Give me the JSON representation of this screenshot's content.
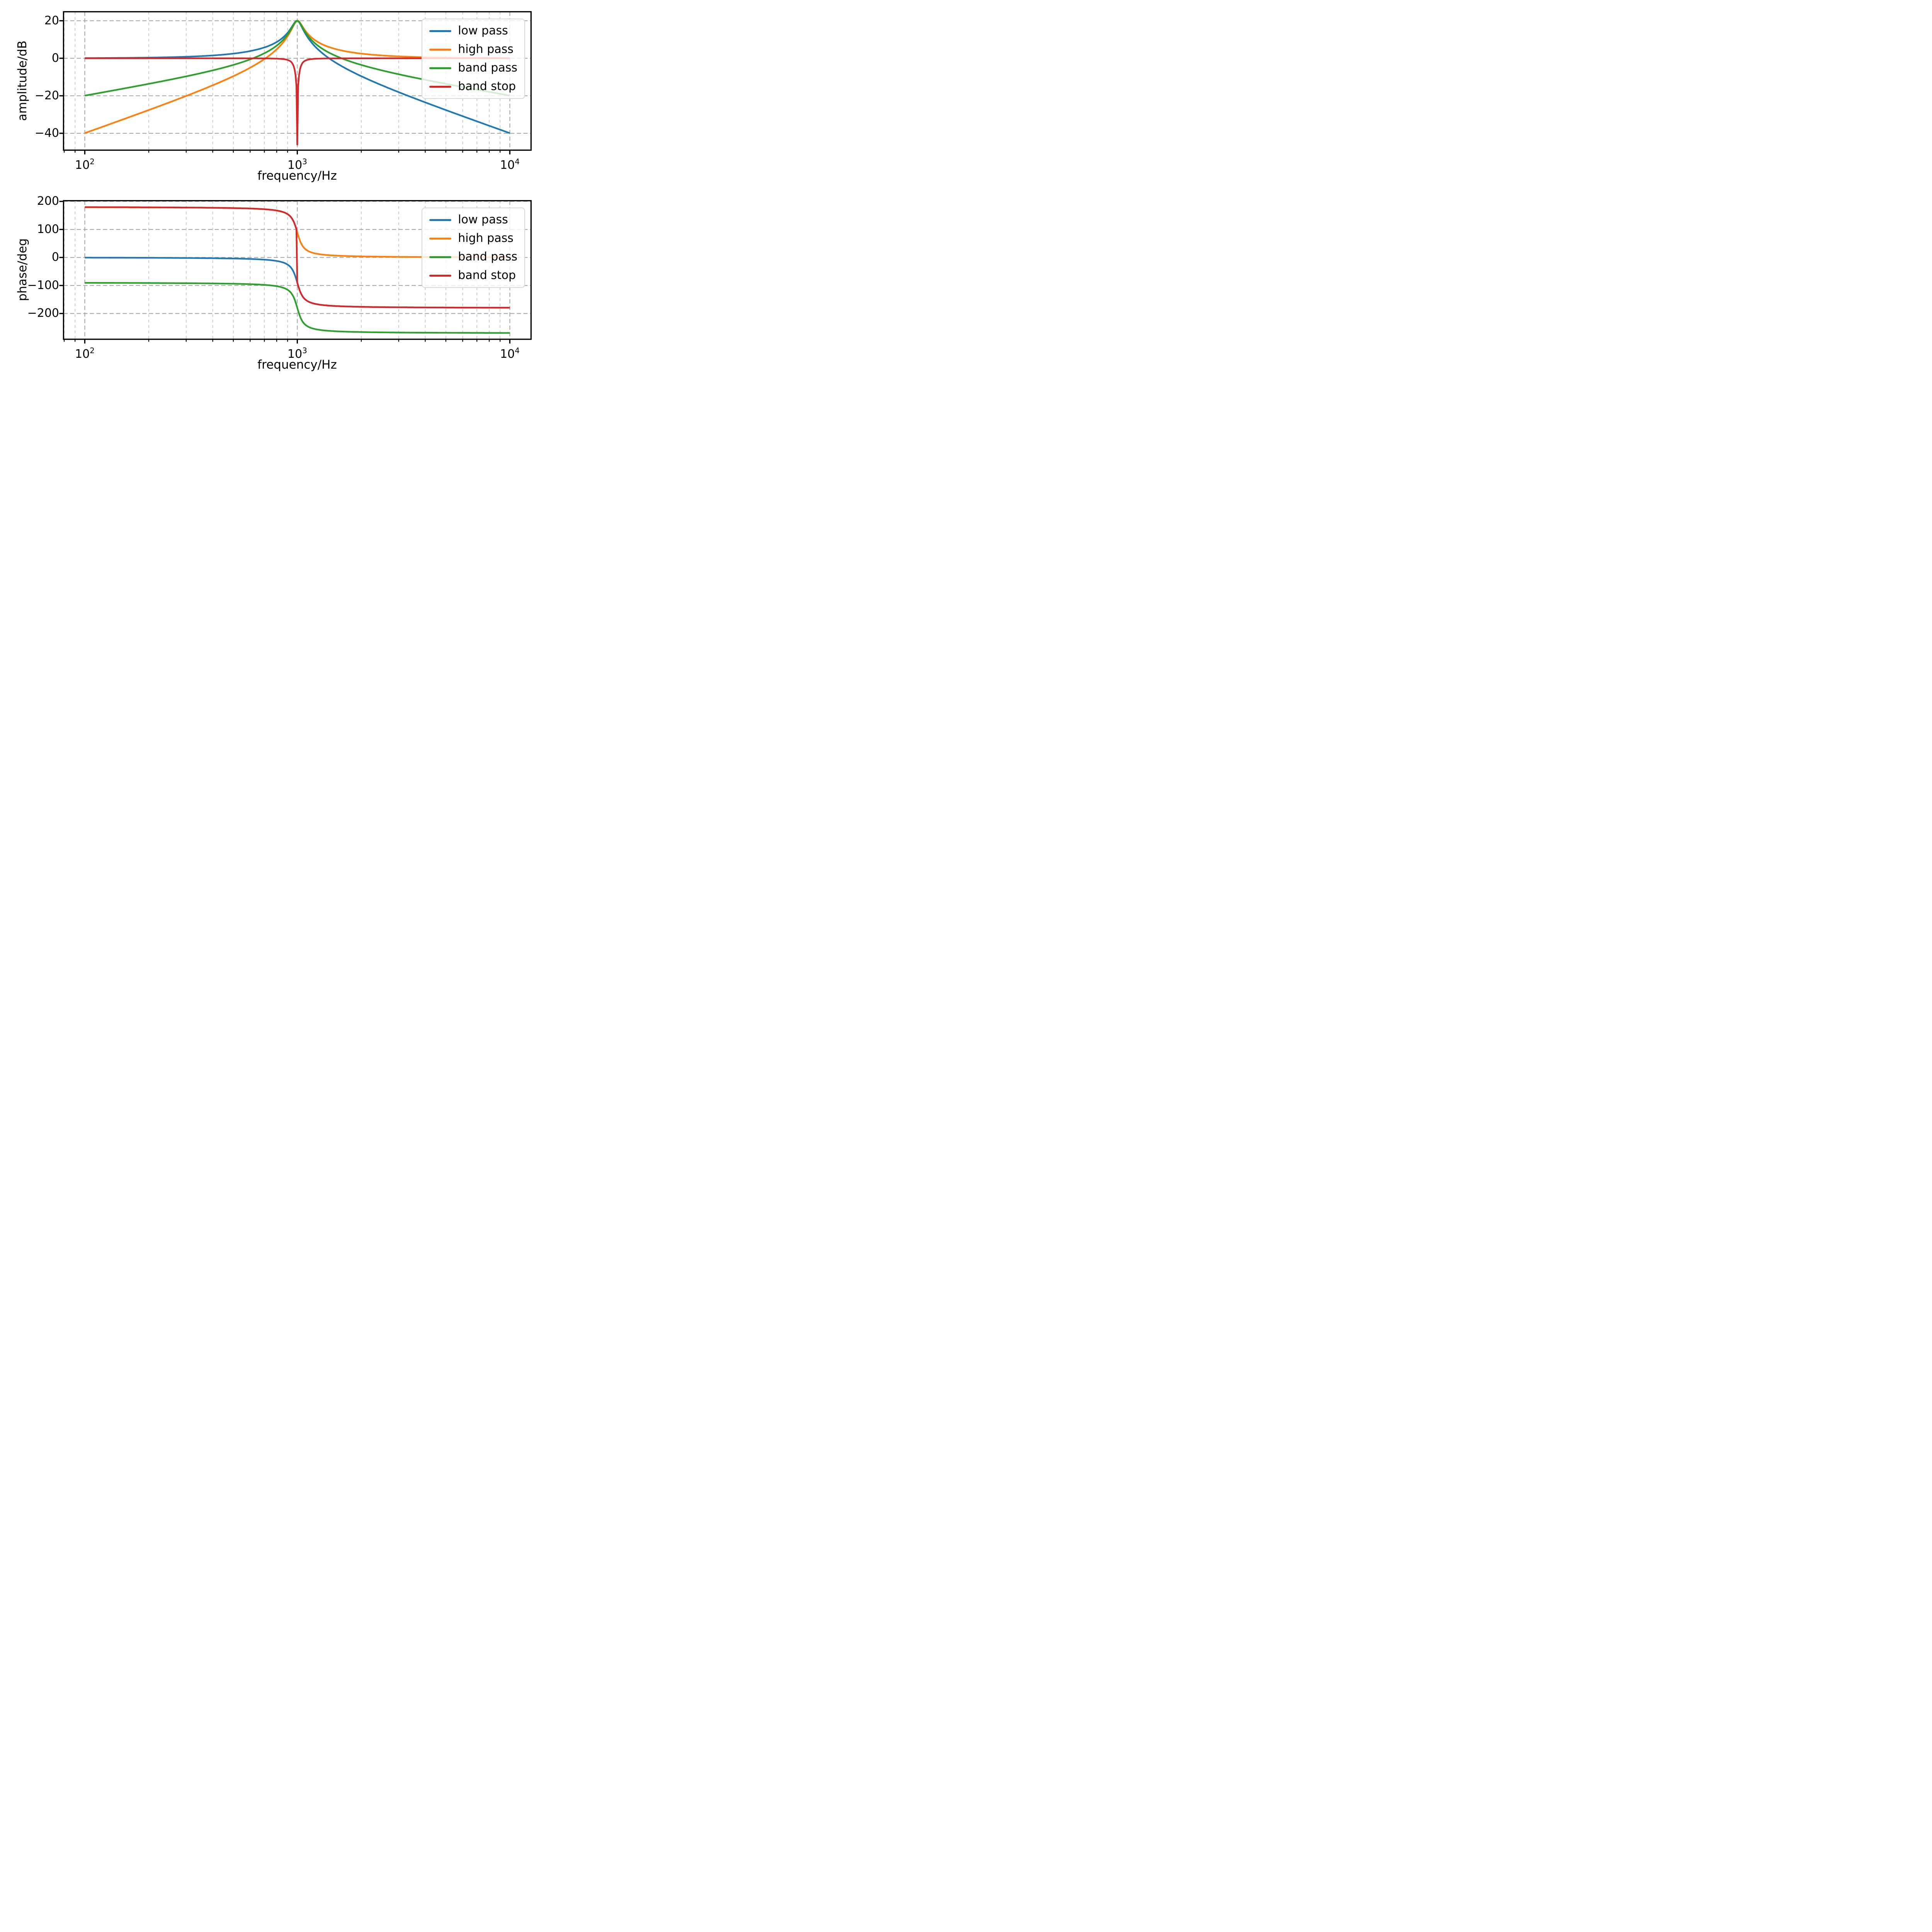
{
  "figure": {
    "background": "#ffffff",
    "text_color": "#000000",
    "grid_major_color": "#a6a6a6",
    "grid_minor_color": "#c6c6c6"
  },
  "chart_data": [
    {
      "id": "amplitude",
      "type": "line",
      "x_scale": "log",
      "xlabel": "frequency/Hz",
      "ylabel": "amplitude/dB",
      "xlim": [
        79.4,
        12589
      ],
      "ylim": [
        -49,
        24.8
      ],
      "x_tick_values": [
        100,
        1000,
        10000
      ],
      "x_tick_labels": [
        {
          "base": "10",
          "exp": "2"
        },
        {
          "base": "10",
          "exp": "3"
        },
        {
          "base": "10",
          "exp": "4"
        }
      ],
      "y_tick_values": [
        20,
        0,
        -20,
        -40
      ],
      "y_tick_labels": [
        "20",
        "0",
        "−20",
        "−40"
      ],
      "grid": {
        "which": "both",
        "style": "dashed"
      },
      "legend": {
        "position": "upper right"
      },
      "model": {
        "filter_f0_hz": 1000,
        "filter_Q": 10,
        "f_min_hz": 100,
        "f_max_hz": 10000,
        "resonance_peak_db": 20,
        "notch_depth_db": -46
      },
      "x_hz": [
        100,
        158,
        251,
        398,
        631,
        1000,
        1585,
        2512,
        3981,
        6310,
        10000
      ],
      "series": [
        {
          "name": "low pass",
          "color": "#1f77b4",
          "y_db": [
            0.1,
            0.2,
            0.6,
            1.5,
            4.4,
            20.0,
            -3.6,
            -14.5,
            -23.4,
            -31.8,
            -39.9
          ]
        },
        {
          "name": "high pass",
          "color": "#ff7f0e",
          "y_db": [
            -39.9,
            -31.8,
            -23.4,
            -14.5,
            -3.6,
            20.0,
            4.4,
            1.5,
            0.6,
            0.2,
            0.1
          ]
        },
        {
          "name": "band pass",
          "color": "#2ca02c",
          "y_db": [
            -19.9,
            -15.8,
            -11.4,
            -6.5,
            0.4,
            20.0,
            0.4,
            -6.5,
            -11.4,
            -15.8,
            -19.9
          ]
        },
        {
          "name": "band stop",
          "color": "#d62728",
          "y_db": [
            0.0,
            0.0,
            0.0,
            0.0,
            -0.1,
            -46.0,
            -0.1,
            0.0,
            0.0,
            0.0,
            0.0
          ],
          "note": "deep notch at 1000 Hz reaching about -46 dB"
        }
      ]
    },
    {
      "id": "phase",
      "type": "line",
      "x_scale": "log",
      "xlabel": "frequency/Hz",
      "ylabel": "phase/deg",
      "xlim": [
        79.4,
        12589
      ],
      "ylim": [
        -292,
        202.5
      ],
      "x_tick_values": [
        100,
        1000,
        10000
      ],
      "x_tick_labels": [
        {
          "base": "10",
          "exp": "2"
        },
        {
          "base": "10",
          "exp": "3"
        },
        {
          "base": "10",
          "exp": "4"
        }
      ],
      "y_tick_values": [
        200,
        100,
        0,
        -100,
        -200
      ],
      "y_tick_labels": [
        "200",
        "100",
        "0",
        "−100",
        "−200"
      ],
      "grid": {
        "which": "both",
        "style": "dashed"
      },
      "legend": {
        "position": "upper right"
      },
      "model": {
        "filter_f0_hz": 1000,
        "filter_Q": 10,
        "f_min_hz": 100,
        "f_max_hz": 10000
      },
      "x_hz": [
        100,
        158,
        251,
        398,
        631,
        1000,
        1585,
        2512,
        3981,
        6310,
        10000
      ],
      "series": [
        {
          "name": "low pass",
          "color": "#1f77b4",
          "y_deg": [
            -0.6,
            -0.9,
            -1.5,
            -2.7,
            -6.0,
            -90.0,
            -174.0,
            -177.3,
            -178.5,
            -179.1,
            -179.4
          ]
        },
        {
          "name": "high pass",
          "color": "#ff7f0e",
          "y_deg": [
            179.4,
            179.1,
            178.5,
            177.3,
            174.0,
            90.0,
            6.0,
            2.7,
            1.5,
            0.9,
            0.6
          ]
        },
        {
          "name": "band pass",
          "color": "#2ca02c",
          "y_deg": [
            -90.6,
            -90.9,
            -91.5,
            -92.7,
            -96.0,
            -180.0,
            -264.0,
            -267.3,
            -268.5,
            -269.1,
            -269.4
          ]
        },
        {
          "name": "band stop",
          "color": "#d62728",
          "y_deg": [
            179.4,
            179.1,
            178.5,
            177.3,
            174.0,
            90.0,
            -174.0,
            -177.3,
            -178.5,
            -179.1,
            -179.4
          ],
          "discontinuity": {
            "at_hz": 1000,
            "from_deg": 90,
            "to_deg": -90
          }
        }
      ]
    }
  ]
}
